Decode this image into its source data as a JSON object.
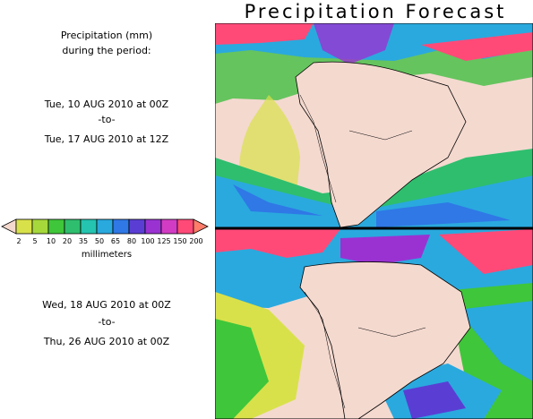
{
  "title": "Precipitation Forecast",
  "header": {
    "line1": "Precipitation (mm)",
    "line2": "during the period:"
  },
  "period1": {
    "start": "Tue, 10 AUG 2010 at 00Z",
    "sep": "-to-",
    "end": "Tue, 17 AUG 2010 at 12Z"
  },
  "period2": {
    "start": "Wed, 18 AUG 2010 at 00Z",
    "sep": "-to-",
    "end": "Thu, 26 AUG 2010 at 00Z"
  },
  "legend": {
    "unit": "millimeters",
    "ticks": [
      "2",
      "5",
      "10",
      "20",
      "35",
      "50",
      "65",
      "80",
      "100",
      "125",
      "150",
      "200"
    ],
    "colors": [
      "#d9e14a",
      "#a6d83c",
      "#3fc63a",
      "#2fbe6e",
      "#24c4b0",
      "#2aa9de",
      "#2f78e6",
      "#5a3ed4",
      "#9a32d2",
      "#d23cc4",
      "#ff4a78"
    ],
    "under_color": "#f4d9cf",
    "over_color": "#ff7c6a"
  }
}
